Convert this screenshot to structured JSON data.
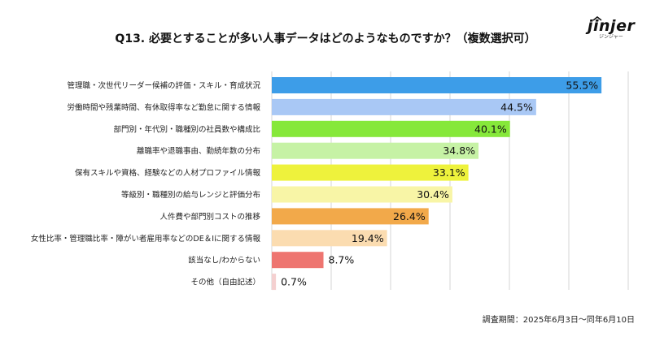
{
  "chart_data": {
    "type": "bar",
    "orientation": "horizontal",
    "title": "Q13. 必要とすることが多い人事データはどのようなものですか？（複数選択可）",
    "categories": [
      "管理職・次世代リーダー候補の評価・スキル・育成状況",
      "労働時間や残業時間、有休取得率など勤怠に関する情報",
      "部門別・年代別・職種別の社員数や構成比",
      "離職率や退職事由、勤続年数の分布",
      "保有スキルや資格、経験などの人材プロファイル情報",
      "等級別・職種別の給与レンジと評価分布",
      "人件費や部門別コストの推移",
      "女性比率・管理職比率・障がい者雇用率などのDE＆Iに関する情報",
      "該当なし/わからない",
      "その他（自由記述）"
    ],
    "values": [
      55.5,
      44.5,
      40.1,
      34.8,
      33.1,
      30.4,
      26.4,
      19.4,
      8.7,
      0.7
    ],
    "value_labels": [
      "55.5%",
      "44.5%",
      "40.1%",
      "34.8%",
      "33.1%",
      "30.4%",
      "26.4%",
      "19.4%",
      "8.7%",
      "0.7%"
    ],
    "colors": [
      "#3d9de8",
      "#a9c8f5",
      "#86e83a",
      "#c6f2a5",
      "#eef23c",
      "#f8f5a6",
      "#f2a94a",
      "#fbdcb0",
      "#ee7570",
      "#f4d0d0"
    ],
    "xlim": [
      0,
      60
    ],
    "grid": true,
    "legend": "none"
  },
  "logo": {
    "word": "jinjer",
    "sub": "ジンジャー"
  },
  "footnote": "調査期間：2025年6月3日〜同年6月10日"
}
